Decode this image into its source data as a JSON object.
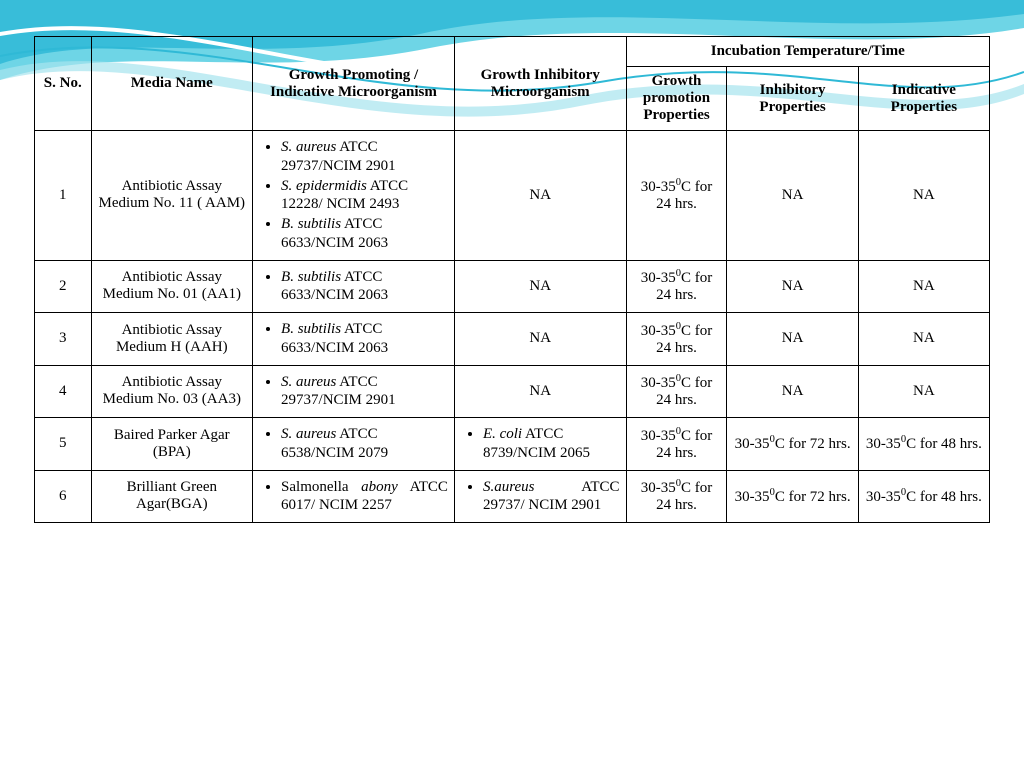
{
  "background": {
    "wave_colors": [
      "#6ed5e6",
      "#2fb9d6",
      "#a7e4ee"
    ],
    "white": "#ffffff"
  },
  "table": {
    "headers": {
      "sno": "S. No.",
      "media": "Media Name",
      "growth_promoting": "Growth Promoting / Indicative Microorganism",
      "growth_inhibitory": "Growth Inhibitory Microorganism",
      "incubation_group": "Incubation Temperature/Time",
      "growth_promotion_properties": "Growth promotion Properties",
      "inhibitory_properties": "Inhibitory Properties",
      "indicative_properties": "Indicative Properties"
    },
    "rows": [
      {
        "sno": "1",
        "media": "Antibiotic Assay Medium No. 11 ( AAM)",
        "promoting": [
          {
            "ital": "S. aureus",
            "rest": " ATCC 29737/NCIM 2901"
          },
          {
            "ital": "S. epidermidis",
            "rest": " ATCC 12228/ NCIM 2493"
          },
          {
            "ital": "B. subtilis",
            "rest": " ATCC 6633/NCIM 2063"
          }
        ],
        "inhibitory": [],
        "inhibitory_text": "NA",
        "gpp": "30-35⁰C for 24 hrs.",
        "ip": "NA",
        "indp": "NA"
      },
      {
        "sno": "2",
        "media": "Antibiotic Assay Medium No. 01 (AA1)",
        "promoting": [
          {
            "ital": "B. subtilis",
            "rest": " ATCC 6633/NCIM 2063"
          }
        ],
        "inhibitory": [],
        "inhibitory_text": "NA",
        "gpp": "30-35⁰C for 24 hrs.",
        "ip": "NA",
        "indp": "NA"
      },
      {
        "sno": "3",
        "media": "Antibiotic Assay Medium H (AAH)",
        "promoting": [
          {
            "ital": "B. subtilis",
            "rest": " ATCC 6633/NCIM 2063"
          }
        ],
        "inhibitory": [],
        "inhibitory_text": "NA",
        "gpp": "30-35⁰C for 24 hrs.",
        "ip": "NA",
        "indp": "NA"
      },
      {
        "sno": "4",
        "media": "Antibiotic Assay Medium No. 03 (AA3)",
        "promoting": [
          {
            "ital": "S. aureus",
            "rest": " ATCC 29737/NCIM 2901"
          }
        ],
        "inhibitory": [],
        "inhibitory_text": "NA",
        "gpp": "30-35⁰C for 24 hrs.",
        "ip": "NA",
        "indp": "NA"
      },
      {
        "sno": "5",
        "media": "Baired Parker Agar (BPA)",
        "promoting": [
          {
            "ital": "S. aureus",
            "rest": " ATCC 6538/NCIM 2079"
          }
        ],
        "inhibitory": [
          {
            "ital": "E. coli",
            "rest": " ATCC 8739/NCIM 2065"
          }
        ],
        "inhibitory_text": "",
        "gpp": "30-35⁰C for 24 hrs.",
        "ip": "30-35⁰C for 72 hrs.",
        "indp": "30-35⁰C for 48 hrs."
      },
      {
        "sno": "6",
        "media": "Brilliant Green Agar(BGA)",
        "promoting": [
          {
            "ital": "",
            "rest": "",
            "justify_html": "Salmonella <span class=\"ital\">abony</span> ATCC 6017/ NCIM 2257"
          }
        ],
        "inhibitory": [
          {
            "ital": "S.aureus",
            "rest": "",
            "justify_html": "<span class=\"ital\">S.aureus</span> ATCC 29737/ NCIM 2901"
          }
        ],
        "inhibitory_text": "",
        "gpp": "30-35⁰C for 24 hrs.",
        "ip": "30-35⁰C for 72 hrs.",
        "indp": "30-35⁰C for 48 hrs."
      }
    ]
  }
}
